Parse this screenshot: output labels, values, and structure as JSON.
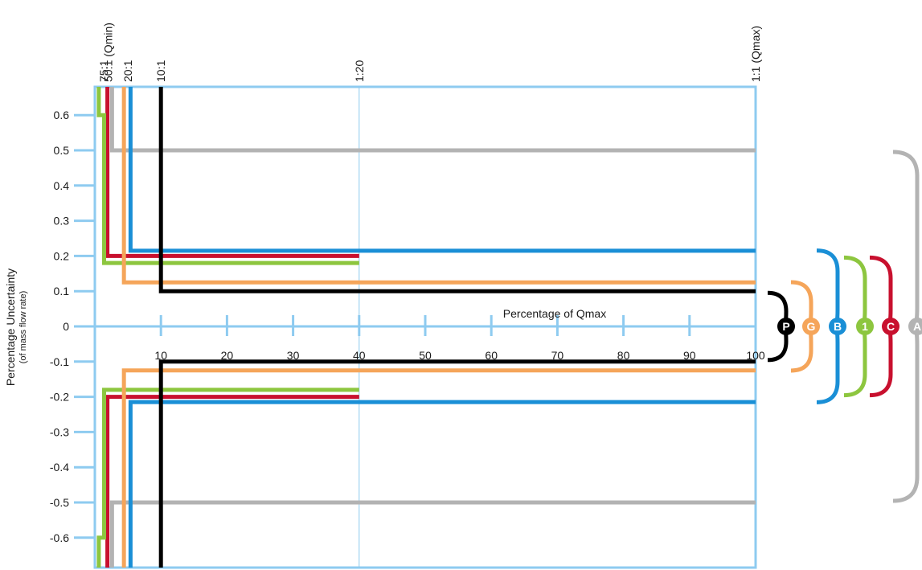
{
  "chart_data": {
    "type": "line",
    "title": "",
    "xlabel": "Percentage of Qmax",
    "ylabel": "Percentage Uncertainty",
    "ylabel_sub": "(of mass flow rate)",
    "xlim": [
      0,
      100
    ],
    "ylim": [
      -0.7,
      0.7
    ],
    "x_ticks": [
      {
        "value": 10,
        "label": "10"
      },
      {
        "value": 20,
        "label": "20"
      },
      {
        "value": 30,
        "label": "30"
      },
      {
        "value": 40,
        "label": "40"
      },
      {
        "value": 50,
        "label": "50"
      },
      {
        "value": 60,
        "label": "60"
      },
      {
        "value": 70,
        "label": "70"
      },
      {
        "value": 80,
        "label": "80"
      },
      {
        "value": 90,
        "label": "90"
      },
      {
        "value": 100,
        "label": "100"
      }
    ],
    "y_ticks": [
      {
        "value": 0.6,
        "label": "0.6"
      },
      {
        "value": 0.5,
        "label": "0.5"
      },
      {
        "value": 0.4,
        "label": "0.4"
      },
      {
        "value": 0.3,
        "label": "0.3"
      },
      {
        "value": 0.2,
        "label": "0.2"
      },
      {
        "value": 0.1,
        "label": "0.1"
      },
      {
        "value": 0,
        "label": "0"
      },
      {
        "value": -0.1,
        "label": "-0.1"
      },
      {
        "value": -0.2,
        "label": "-0.2"
      },
      {
        "value": -0.3,
        "label": "-0.3"
      },
      {
        "value": -0.4,
        "label": "-0.4"
      },
      {
        "value": -0.5,
        "label": "-0.5"
      },
      {
        "value": -0.6,
        "label": "-0.6"
      }
    ],
    "top_markers": [
      {
        "value": 1.333,
        "label": "75:1"
      },
      {
        "value": 2,
        "label": "50:1 (Qmin)"
      },
      {
        "value": 5,
        "label": "20:1"
      },
      {
        "value": 10,
        "label": "10:1"
      },
      {
        "value": 40,
        "label": "1:20"
      },
      {
        "value": 100,
        "label": "1:1 (Qmax)"
      }
    ],
    "series": [
      {
        "name": "A",
        "color": "#b3b3b3",
        "points": [
          [
            2.6,
            0.5
          ],
          [
            100,
            0.5
          ]
        ]
      },
      {
        "name": "C",
        "color": "#c8102e",
        "points": [
          [
            1.9,
            0.2
          ],
          [
            40,
            0.2
          ]
        ]
      },
      {
        "name": "1",
        "color": "#8dc63f",
        "points": [
          [
            0.6,
            0.6
          ],
          [
            1.4,
            0.6
          ],
          [
            1.4,
            0.18
          ],
          [
            40,
            0.18
          ]
        ]
      },
      {
        "name": "B",
        "color": "#1a8fd6",
        "points": [
          [
            5.4,
            0.215
          ],
          [
            100,
            0.215
          ]
        ]
      },
      {
        "name": "G",
        "color": "#f5a55a",
        "points": [
          [
            4.4,
            0.125
          ],
          [
            100,
            0.125
          ]
        ]
      },
      {
        "name": "P",
        "color": "#000000",
        "points": [
          [
            10,
            0.1
          ],
          [
            100,
            0.1
          ]
        ]
      }
    ],
    "grid": false,
    "legend": "right",
    "colors": {
      "axis": "#8ecbf0",
      "frame": "#8ecbf0"
    }
  }
}
